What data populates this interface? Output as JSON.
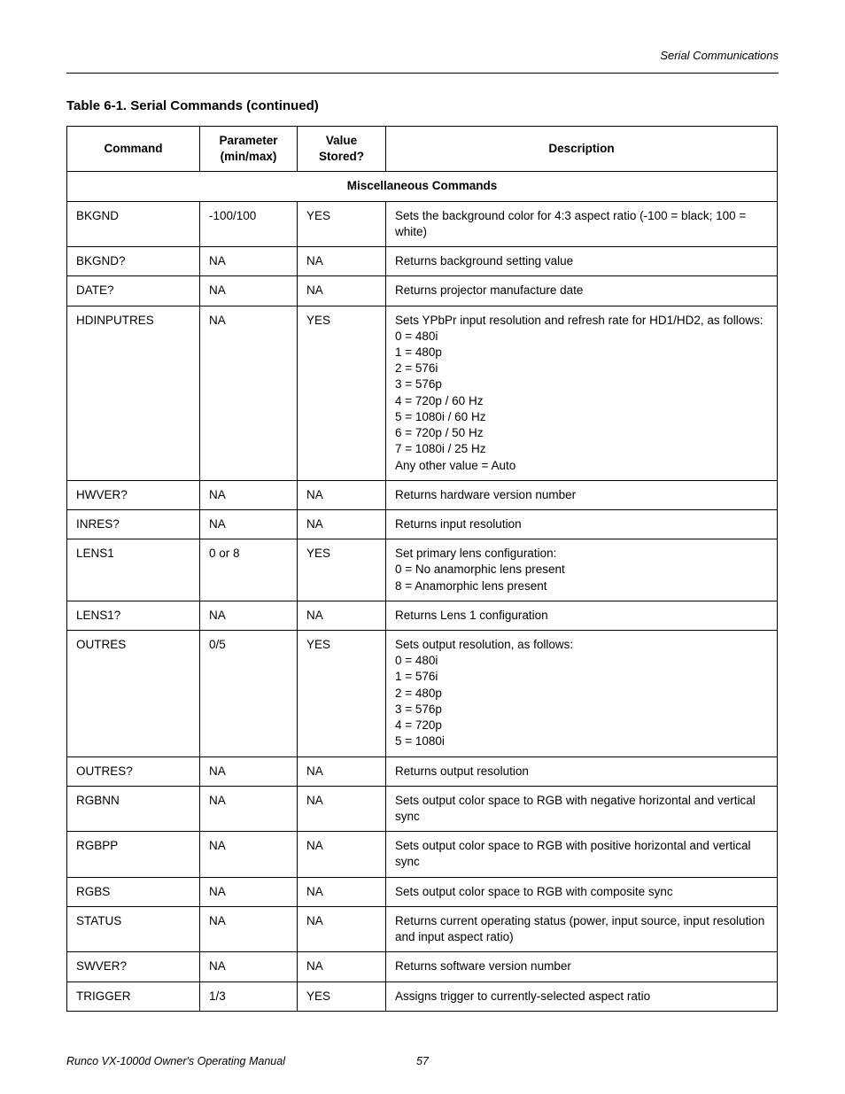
{
  "running_header": "Serial Communications",
  "title": "Table 6-1. Serial Commands (continued)",
  "columns": {
    "command": "Command",
    "param": "Parameter (min/max)",
    "stored": "Value Stored?",
    "desc": "Description"
  },
  "section_header": "Miscellaneous Commands",
  "rows": [
    {
      "command": "BKGND",
      "param": "-100/100",
      "stored": "YES",
      "desc": "Sets the background color for 4:3 aspect ratio (-100 = black; 100 = white)"
    },
    {
      "command": "BKGND?",
      "param": "NA",
      "stored": "NA",
      "desc": "Returns background setting value"
    },
    {
      "command": "DATE?",
      "param": "NA",
      "stored": "NA",
      "desc": "Returns projector manufacture date"
    },
    {
      "command": "HDINPUTRES",
      "param": "NA",
      "stored": "YES",
      "desc": "Sets YPbPr input resolution and refresh rate for HD1/HD2, as follows:\n0 = 480i\n1 = 480p\n2 = 576i\n3 = 576p\n4 = 720p / 60 Hz\n5 = 1080i / 60 Hz\n6 = 720p / 50 Hz\n7 = 1080i / 25 Hz\nAny other value = Auto"
    },
    {
      "command": "HWVER?",
      "param": "NA",
      "stored": "NA",
      "desc": "Returns hardware version number"
    },
    {
      "command": "INRES?",
      "param": "NA",
      "stored": "NA",
      "desc": "Returns input resolution"
    },
    {
      "command": "LENS1",
      "param": "0 or 8",
      "stored": "YES",
      "desc": "Set primary lens configuration:\n0 = No anamorphic lens present\n8 = Anamorphic lens present"
    },
    {
      "command": "LENS1?",
      "param": "NA",
      "stored": "NA",
      "desc": "Returns Lens 1 configuration"
    },
    {
      "command": "OUTRES",
      "param": "0/5",
      "stored": "YES",
      "desc": "Sets output resolution, as follows:\n0 = 480i\n1 = 576i\n2 = 480p\n3 = 576p\n4 = 720p\n5 = 1080i"
    },
    {
      "command": "OUTRES?",
      "param": "NA",
      "stored": "NA",
      "desc": "Returns output resolution"
    },
    {
      "command": "RGBNN",
      "param": "NA",
      "stored": "NA",
      "desc": "Sets output color space to RGB with negative horizontal and vertical sync"
    },
    {
      "command": "RGBPP",
      "param": "NA",
      "stored": "NA",
      "desc": "Sets output color space to RGB with positive horizontal and vertical sync"
    },
    {
      "command": "RGBS",
      "param": "NA",
      "stored": "NA",
      "desc": "Sets output color space to RGB with composite sync"
    },
    {
      "command": "STATUS",
      "param": "NA",
      "stored": "NA",
      "desc": "Returns current operating status (power, input source, input resolution and input aspect ratio)"
    },
    {
      "command": "SWVER?",
      "param": "NA",
      "stored": "NA",
      "desc": "Returns software version number"
    },
    {
      "command": "TRIGGER",
      "param": "1/3",
      "stored": "YES",
      "desc": "Assigns trigger to currently-selected aspect ratio"
    }
  ],
  "footer_left": "Runco VX-1000d Owner's Operating Manual",
  "footer_page": "57"
}
